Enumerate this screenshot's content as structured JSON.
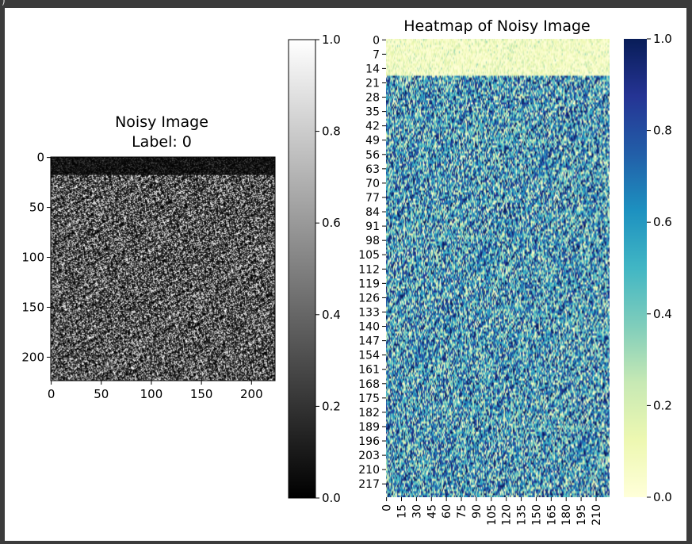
{
  "cell_glyph": ")",
  "chart_data": [
    {
      "type": "heatmap",
      "title": "Noisy Image",
      "subtitle": "Label: 0",
      "colormap": "gray",
      "x_ticks": [
        0,
        50,
        100,
        150,
        200
      ],
      "y_ticks": [
        0,
        50,
        100,
        150,
        200
      ],
      "xlim": [
        0,
        224
      ],
      "ylim": [
        0,
        224
      ],
      "colorbar_ticks": [
        "0.0",
        "0.2",
        "0.4",
        "0.6",
        "0.8",
        "1.0"
      ],
      "colorbar_range": [
        0.0,
        1.0
      ],
      "dark_band_rows": [
        0,
        18
      ],
      "grid": false
    },
    {
      "type": "heatmap",
      "title": "Heatmap of Noisy Image",
      "colormap": "YlGnBu",
      "x_ticks": [
        "0",
        "15",
        "30",
        "45",
        "60",
        "75",
        "90",
        "105",
        "120",
        "135",
        "150",
        "165",
        "180",
        "195",
        "210"
      ],
      "y_ticks": [
        "0",
        "7",
        "14",
        "21",
        "28",
        "35",
        "42",
        "49",
        "56",
        "63",
        "70",
        "77",
        "84",
        "91",
        "98",
        "105",
        "112",
        "119",
        "126",
        "133",
        "140",
        "147",
        "154",
        "161",
        "168",
        "175",
        "182",
        "189",
        "196",
        "203",
        "210",
        "217"
      ],
      "xlim": [
        0,
        224
      ],
      "ylim": [
        0,
        224
      ],
      "colorbar_ticks": [
        "0.0",
        "0.2",
        "0.4",
        "0.6",
        "0.8",
        "1.0"
      ],
      "colorbar_range": [
        0.0,
        1.0
      ],
      "light_band_rows": [
        0,
        18
      ],
      "grid": false
    }
  ]
}
